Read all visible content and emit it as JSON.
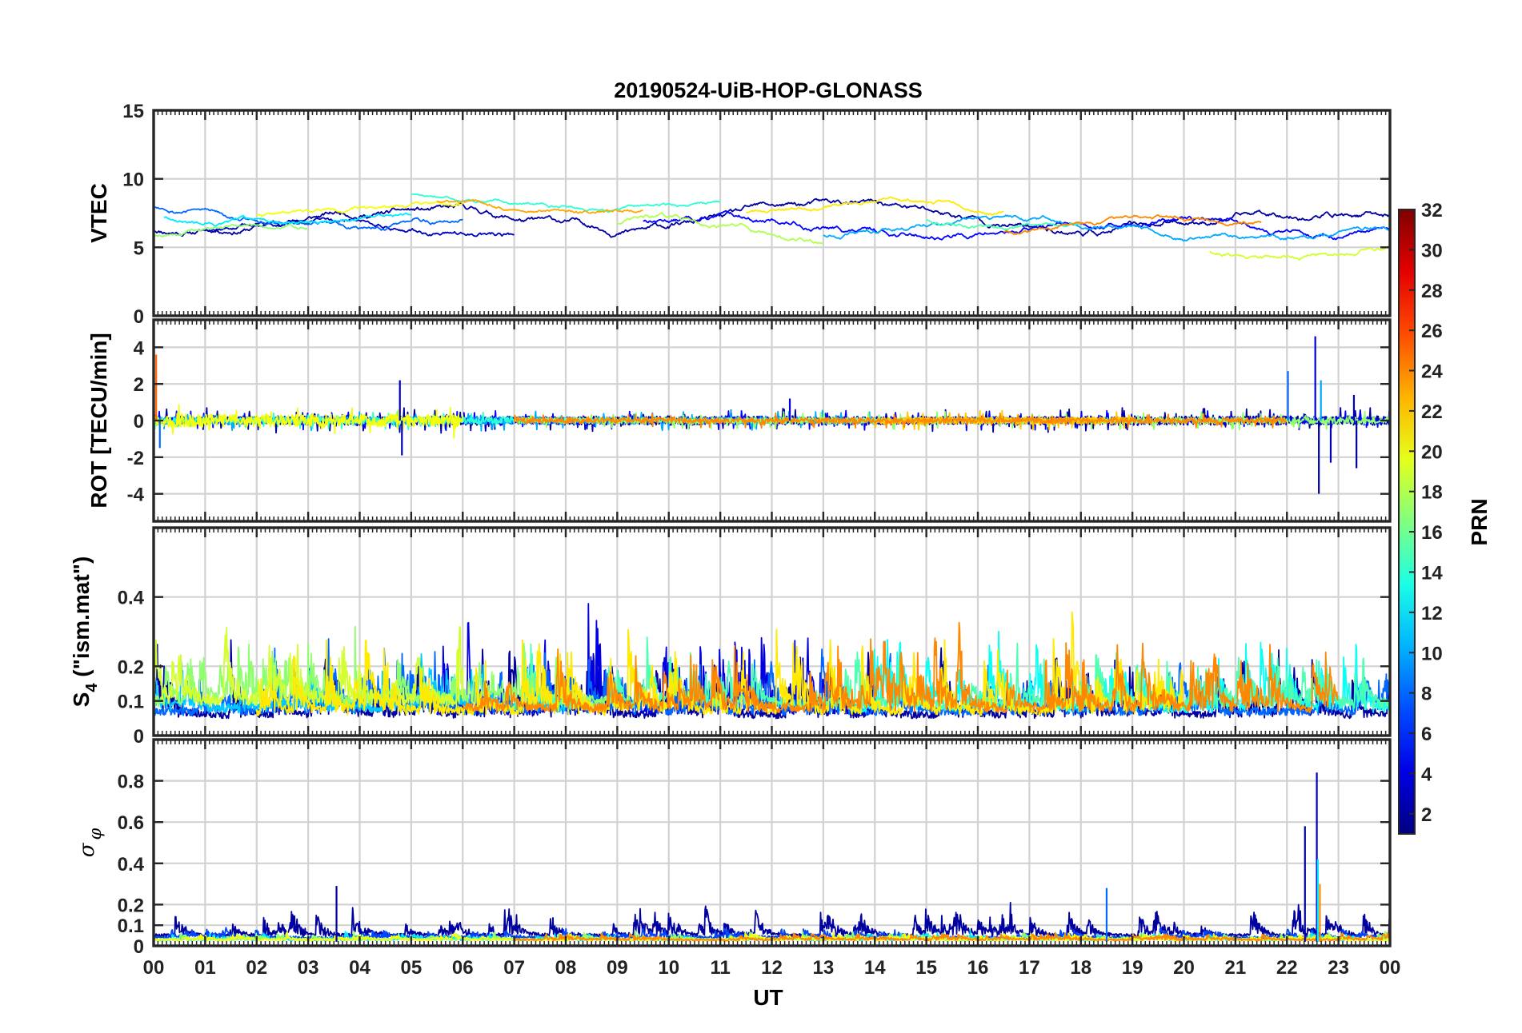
{
  "chart_data": {
    "type": "line",
    "title": "20190524-UiB-HOP-GLONASS",
    "xlabel": "UT",
    "x_ticks": [
      "00",
      "01",
      "02",
      "03",
      "04",
      "05",
      "06",
      "07",
      "08",
      "09",
      "10",
      "11",
      "12",
      "13",
      "14",
      "15",
      "16",
      "17",
      "18",
      "19",
      "20",
      "21",
      "22",
      "23",
      "00"
    ],
    "x_range_hours": [
      0,
      24
    ],
    "grid": true,
    "panels": [
      {
        "id": "vtec",
        "ylabel": "VTEC",
        "ylim": [
          0,
          15
        ],
        "yticks": [
          0,
          5,
          10,
          15
        ],
        "ytick_labels": [
          "0",
          "5",
          "10",
          "15"
        ],
        "series": [
          {
            "prn": 2,
            "baseline": 7.0,
            "amp": 1.2,
            "noise": 0.18,
            "start": 0.0,
            "end": 24.0,
            "seed": 11
          },
          {
            "prn": 3,
            "baseline": 6.3,
            "amp": 1.0,
            "noise": 0.15,
            "start": 1.0,
            "end": 7.0,
            "seed": 12
          },
          {
            "prn": 5,
            "baseline": 6.5,
            "amp": 1.1,
            "noise": 0.16,
            "start": 9.5,
            "end": 24.0,
            "seed": 13
          },
          {
            "prn": 8,
            "baseline": 7.2,
            "amp": 1.3,
            "noise": 0.15,
            "start": 0.0,
            "end": 6.0,
            "seed": 14
          },
          {
            "prn": 10,
            "baseline": 6.4,
            "amp": 1.0,
            "noise": 0.14,
            "start": 13.0,
            "end": 24.0,
            "seed": 15
          },
          {
            "prn": 12,
            "baseline": 7.5,
            "amp": 1.2,
            "noise": 0.14,
            "start": 0.2,
            "end": 5.0,
            "seed": 16
          },
          {
            "prn": 14,
            "baseline": 8.4,
            "amp": 0.8,
            "noise": 0.1,
            "start": 5.0,
            "end": 11.0,
            "seed": 17
          },
          {
            "prn": 15,
            "baseline": 7.1,
            "amp": 0.8,
            "noise": 0.12,
            "start": 15.0,
            "end": 18.0,
            "seed": 18
          },
          {
            "prn": 17,
            "baseline": 5.8,
            "amp": 1.3,
            "noise": 0.14,
            "start": 0.0,
            "end": 3.0,
            "seed": 19
          },
          {
            "prn": 18,
            "baseline": 6.0,
            "amp": 1.5,
            "noise": 0.15,
            "start": 9.0,
            "end": 13.0,
            "seed": 20
          },
          {
            "prn": 19,
            "baseline": 5.4,
            "amp": 1.5,
            "noise": 0.15,
            "start": 20.5,
            "end": 24.0,
            "seed": 21
          },
          {
            "prn": 20,
            "baseline": 8.0,
            "amp": 1.0,
            "noise": 0.12,
            "start": 2.0,
            "end": 6.0,
            "seed": 22
          },
          {
            "prn": 21,
            "baseline": 7.8,
            "amp": 1.0,
            "noise": 0.12,
            "start": 11.5,
            "end": 16.5,
            "seed": 23
          },
          {
            "prn": 23,
            "baseline": 8.2,
            "amp": 0.8,
            "noise": 0.12,
            "start": 5.5,
            "end": 9.5,
            "seed": 24
          },
          {
            "prn": 24,
            "baseline": 6.6,
            "amp": 0.8,
            "noise": 0.12,
            "start": 16.5,
            "end": 21.5,
            "seed": 25
          }
        ]
      },
      {
        "id": "rot",
        "ylabel": "ROT [TECU/min]",
        "ylim": [
          -5.5,
          5.5
        ],
        "yticks": [
          -4,
          -2,
          0,
          2,
          4
        ],
        "ytick_labels": [
          "-4",
          "-2",
          "0",
          "2",
          "4"
        ],
        "series": [
          {
            "prn": 2,
            "level": 0.25,
            "start": 0.0,
            "end": 24.0,
            "seed": 31
          },
          {
            "prn": 5,
            "level": 0.2,
            "start": 0.0,
            "end": 24.0,
            "seed": 32
          },
          {
            "prn": 10,
            "level": 0.2,
            "start": 0.0,
            "end": 14.0,
            "seed": 33
          },
          {
            "prn": 14,
            "level": 0.18,
            "start": 0.0,
            "end": 7.0,
            "seed": 34
          },
          {
            "prn": 17,
            "level": 0.18,
            "start": 7.0,
            "end": 24.0,
            "seed": 35
          },
          {
            "prn": 20,
            "level": 0.35,
            "start": 0.0,
            "end": 6.0,
            "seed": 36
          },
          {
            "prn": 22,
            "level": 0.2,
            "start": 14.0,
            "end": 19.0,
            "seed": 37
          },
          {
            "prn": 24,
            "level": 0.15,
            "start": 7.0,
            "end": 22.0,
            "seed": 38
          }
        ],
        "spikes": [
          {
            "t": 0.05,
            "v": 3.6,
            "prn": 25
          },
          {
            "t": 0.12,
            "v": -1.5,
            "prn": 8
          },
          {
            "t": 4.78,
            "v": 2.2,
            "prn": 3
          },
          {
            "t": 4.82,
            "v": -1.9,
            "prn": 3
          },
          {
            "t": 12.35,
            "v": 1.2,
            "prn": 4
          },
          {
            "t": 22.02,
            "v": 2.7,
            "prn": 8
          },
          {
            "t": 22.55,
            "v": 4.6,
            "prn": 4
          },
          {
            "t": 22.62,
            "v": -4.0,
            "prn": 2
          },
          {
            "t": 22.66,
            "v": 2.2,
            "prn": 10
          },
          {
            "t": 22.85,
            "v": -2.3,
            "prn": 3
          },
          {
            "t": 23.35,
            "v": -2.6,
            "prn": 2
          },
          {
            "t": 23.3,
            "v": 1.4,
            "prn": 3
          }
        ]
      },
      {
        "id": "s4",
        "ylabel": "S_4 (\"ism.mat\")",
        "ylabel_main": "S",
        "ylabel_sub": "4",
        "ylabel_rest": " (\"ism.mat\")",
        "ylim": [
          0.0,
          0.6
        ],
        "yticks": [
          0,
          0.1,
          0.2,
          0.4
        ],
        "ytick_labels": [
          "0",
          "0.1",
          "0.2",
          "0.4"
        ],
        "series": [
          {
            "prn": 2,
            "base": 0.06,
            "burst": 0.18,
            "start": 0.0,
            "end": 24.0,
            "seed": 41
          },
          {
            "prn": 4,
            "base": 0.07,
            "burst": 0.22,
            "start": 5.5,
            "end": 14.0,
            "seed": 42
          },
          {
            "prn": 8,
            "base": 0.07,
            "burst": 0.16,
            "start": 0.0,
            "end": 24.0,
            "seed": 43
          },
          {
            "prn": 11,
            "base": 0.08,
            "burst": 0.14,
            "start": 0.0,
            "end": 8.0,
            "seed": 44
          },
          {
            "prn": 13,
            "base": 0.08,
            "burst": 0.2,
            "start": 13.5,
            "end": 24.0,
            "seed": 45
          },
          {
            "prn": 15,
            "base": 0.09,
            "burst": 0.14,
            "start": 7.0,
            "end": 24.0,
            "seed": 46
          },
          {
            "prn": 17,
            "base": 0.1,
            "burst": 0.18,
            "start": 0.0,
            "end": 9.0,
            "seed": 47
          },
          {
            "prn": 19,
            "base": 0.1,
            "burst": 0.2,
            "start": 0.0,
            "end": 6.0,
            "seed": 48
          },
          {
            "prn": 21,
            "base": 0.07,
            "burst": 0.22,
            "start": 2.0,
            "end": 20.0,
            "seed": 49
          },
          {
            "prn": 24,
            "base": 0.08,
            "burst": 0.18,
            "start": 6.0,
            "end": 23.0,
            "seed": 50
          }
        ]
      },
      {
        "id": "sigma",
        "ylabel": "σ_φ",
        "ylabel_main": "σ",
        "ylabel_sub": "φ",
        "ylim": [
          0.0,
          1.0
        ],
        "yticks": [
          0,
          0.1,
          0.2,
          0.4,
          0.6,
          0.8
        ],
        "ytick_labels": [
          "0",
          "0.1",
          "0.2",
          "0.4",
          "0.6",
          "0.8"
        ],
        "series": [
          {
            "prn": 2,
            "base": 0.05,
            "burst": 0.12,
            "start": 0.0,
            "end": 24.0,
            "seed": 61
          },
          {
            "prn": 7,
            "base": 0.04,
            "burst": 0.04,
            "start": 0.0,
            "end": 24.0,
            "seed": 62
          },
          {
            "prn": 12,
            "base": 0.03,
            "burst": 0.03,
            "start": 0.0,
            "end": 24.0,
            "seed": 63
          },
          {
            "prn": 17,
            "base": 0.03,
            "burst": 0.03,
            "start": 0.0,
            "end": 24.0,
            "seed": 64
          },
          {
            "prn": 20,
            "base": 0.03,
            "burst": 0.03,
            "start": 0.0,
            "end": 24.0,
            "seed": 65
          },
          {
            "prn": 24,
            "base": 0.03,
            "burst": 0.03,
            "start": 7.0,
            "end": 24.0,
            "seed": 66
          }
        ],
        "spikes": [
          {
            "t": 3.55,
            "v": 0.29,
            "prn": 2
          },
          {
            "t": 18.5,
            "v": 0.28,
            "prn": 8
          },
          {
            "t": 22.35,
            "v": 0.58,
            "prn": 2
          },
          {
            "t": 22.58,
            "v": 0.84,
            "prn": 3
          },
          {
            "t": 22.6,
            "v": 0.42,
            "prn": 12
          },
          {
            "t": 22.64,
            "v": 0.3,
            "prn": 24
          }
        ]
      }
    ],
    "colorbar": {
      "label": "PRN",
      "range": [
        1,
        32
      ],
      "ticks": [
        2,
        4,
        6,
        8,
        10,
        12,
        14,
        16,
        18,
        20,
        22,
        24,
        26,
        28,
        30,
        32
      ],
      "tick_labels": [
        "2",
        "4",
        "6",
        "8",
        "10",
        "12",
        "14",
        "16",
        "18",
        "20",
        "22",
        "24",
        "26",
        "28",
        "30",
        "32"
      ],
      "colormap": "jet"
    }
  }
}
